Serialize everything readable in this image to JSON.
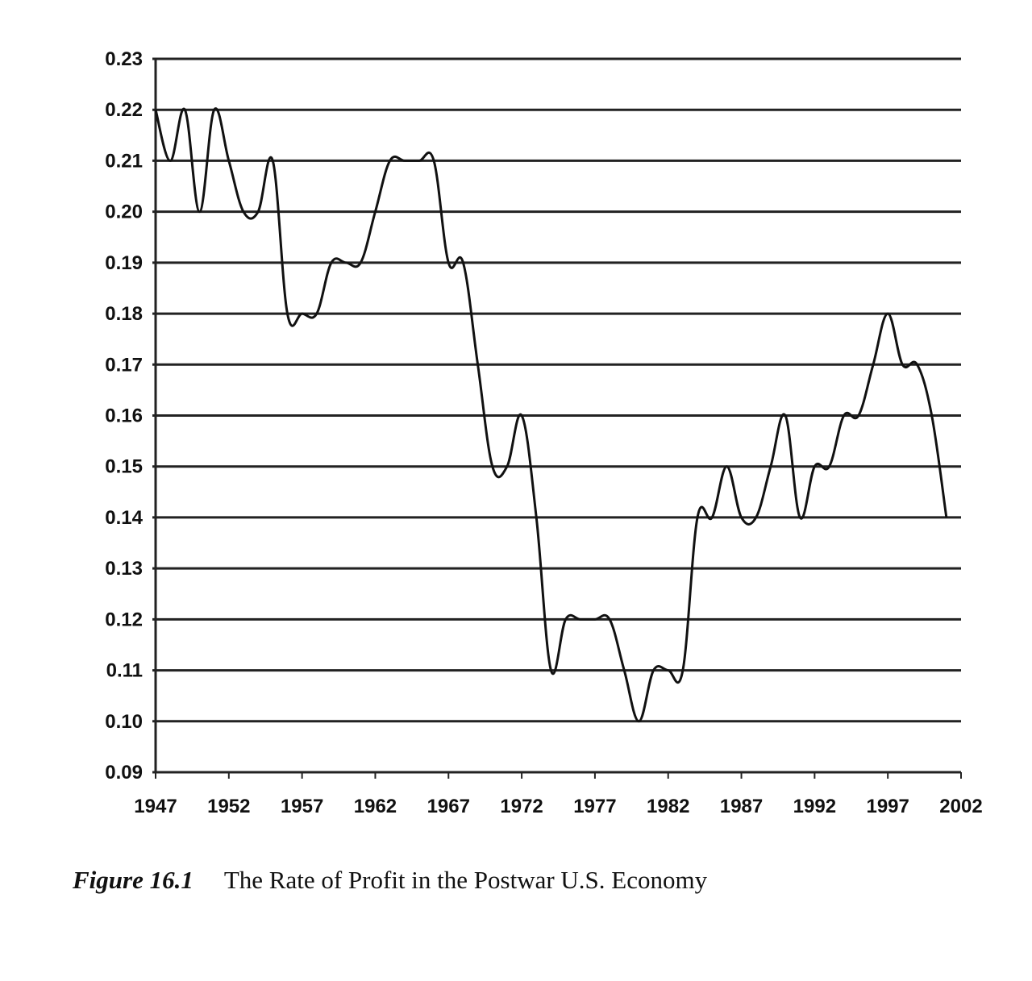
{
  "chart_data": {
    "type": "line",
    "title": "",
    "xlabel": "",
    "ylabel": "",
    "xlim": [
      1947,
      2002
    ],
    "ylim": [
      0.09,
      0.23
    ],
    "grid": "horizontal",
    "line_color": "#111111",
    "x_ticks": [
      "1947",
      "1952",
      "1957",
      "1962",
      "1967",
      "1972",
      "1977",
      "1982",
      "1987",
      "1992",
      "1997",
      "2002"
    ],
    "y_ticks": [
      "0.23",
      "0.22",
      "0.21",
      "0.20",
      "0.19",
      "0.18",
      "0.17",
      "0.16",
      "0.15",
      "0.14",
      "0.13",
      "0.12",
      "0.11",
      "0.10",
      "0.09"
    ],
    "x": [
      1947,
      1948,
      1949,
      1950,
      1951,
      1952,
      1953,
      1954,
      1955,
      1956,
      1957,
      1958,
      1959,
      1960,
      1961,
      1962,
      1963,
      1964,
      1965,
      1966,
      1967,
      1968,
      1969,
      1970,
      1971,
      1972,
      1973,
      1974,
      1975,
      1976,
      1977,
      1978,
      1979,
      1980,
      1981,
      1982,
      1983,
      1984,
      1985,
      1986,
      1987,
      1988,
      1989,
      1990,
      1991,
      1992,
      1993,
      1994,
      1995,
      1996,
      1997,
      1998,
      1999,
      2000,
      2001
    ],
    "y": [
      0.22,
      0.21,
      0.22,
      0.2,
      0.22,
      0.21,
      0.2,
      0.2,
      0.21,
      0.18,
      0.18,
      0.18,
      0.19,
      0.19,
      0.19,
      0.2,
      0.21,
      0.21,
      0.21,
      0.21,
      0.19,
      0.19,
      0.17,
      0.15,
      0.15,
      0.16,
      0.14,
      0.11,
      0.12,
      0.12,
      0.12,
      0.12,
      0.11,
      0.1,
      0.11,
      0.11,
      0.11,
      0.14,
      0.14,
      0.15,
      0.14,
      0.14,
      0.15,
      0.16,
      0.14,
      0.15,
      0.15,
      0.16,
      0.16,
      0.17,
      0.18,
      0.17,
      0.17,
      0.16,
      0.14
    ]
  },
  "caption": {
    "figure_label": "Figure 16.1",
    "text": "The Rate of Profit in the Postwar U.S. Economy"
  }
}
